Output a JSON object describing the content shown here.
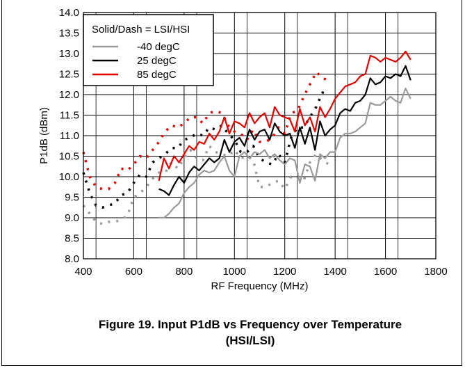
{
  "caption": {
    "line1": "Figure 19. Input P1dB vs Frequency over Temperature",
    "line2": "(HSI/LSI)"
  },
  "chart_data": {
    "type": "line",
    "title": "",
    "xlabel": "RF Frequency (MHz)",
    "ylabel": "P1dB (dBm)",
    "xlim": [
      400,
      1800
    ],
    "ylim": [
      8.0,
      14.0
    ],
    "xticks": [
      400,
      600,
      800,
      1000,
      1200,
      1400,
      1600,
      1800
    ],
    "yticks": [
      8.0,
      8.5,
      9.0,
      9.5,
      10.0,
      10.5,
      11.0,
      11.5,
      12.0,
      12.5,
      13.0,
      13.5,
      14.0
    ],
    "xtick_labels": [
      "400",
      "600",
      "800",
      "1000",
      "1200",
      "1400",
      "1600",
      "1800"
    ],
    "ytick_labels": [
      "8.0",
      "8.5",
      "9.0",
      "9.5",
      "10.0",
      "10.5",
      "11.0",
      "11.5",
      "12.0",
      "12.5",
      "13.0",
      "13.5",
      "14.0"
    ],
    "grid": true,
    "legend": {
      "title": "Solid/Dash = LSI/HSI",
      "placement": "top-left",
      "entries": [
        "-40 degC",
        "25 degC",
        "85 degC"
      ]
    },
    "colors": {
      "-40 degC": "#9a9a9a",
      "25 degC": "#000000",
      "85 degC": "#e00000"
    },
    "series": [
      {
        "name": "-40 degC",
        "style": "dash",
        "x": [
          400,
          425,
          450,
          475,
          500,
          525,
          550,
          575,
          600,
          625,
          650,
          675,
          700,
          725,
          750,
          775,
          800,
          825,
          850,
          875,
          900,
          925,
          950,
          975,
          1000,
          1025,
          1050,
          1075,
          1100,
          1125,
          1150,
          1175,
          1200,
          1225,
          1250,
          1275,
          1300,
          1325,
          1350,
          1375
        ],
        "y": [
          9.3,
          9.1,
          8.9,
          8.85,
          8.9,
          8.9,
          8.95,
          9.05,
          9.5,
          9.6,
          9.75,
          9.95,
          10.1,
          10.1,
          10.35,
          10.2,
          10.45,
          10.65,
          10.45,
          10.4,
          10.75,
          10.6,
          10.55,
          10.5,
          10.65,
          10.45,
          10.5,
          10.4,
          9.75,
          9.75,
          9.85,
          9.9,
          9.7,
          10.0,
          9.95,
          9.9,
          10.35,
          10.55,
          10.4,
          10.3
        ]
      },
      {
        "name": "25 degC",
        "style": "dash",
        "x": [
          400,
          425,
          450,
          475,
          500,
          525,
          550,
          575,
          600,
          625,
          650,
          675,
          700,
          725,
          750,
          775,
          800,
          825,
          850,
          875,
          900,
          925,
          950,
          975,
          1000,
          1025,
          1050,
          1075,
          1100,
          1125,
          1150,
          1175,
          1200,
          1225,
          1250,
          1275,
          1300,
          1325,
          1350,
          1375
        ],
        "y": [
          10.1,
          9.6,
          9.3,
          9.25,
          9.3,
          9.35,
          9.55,
          9.6,
          9.85,
          10.05,
          10.0,
          10.35,
          10.45,
          10.55,
          10.7,
          10.7,
          10.9,
          10.95,
          11.05,
          11.0,
          11.2,
          11.15,
          11.25,
          11.05,
          10.9,
          10.6,
          10.6,
          10.75,
          10.45,
          10.35,
          10.3,
          10.55,
          10.35,
          10.95,
          11.2,
          11.2,
          11.45,
          11.7,
          12.05,
          12.0
        ]
      },
      {
        "name": "85 degC",
        "style": "dash",
        "x": [
          400,
          425,
          450,
          475,
          500,
          525,
          550,
          575,
          600,
          625,
          650,
          675,
          700,
          725,
          750,
          775,
          800,
          825,
          850,
          875,
          900,
          925,
          950,
          975,
          1000,
          1025,
          1050,
          1075,
          1100,
          1125,
          1150,
          1175,
          1200,
          1225,
          1250,
          1275,
          1300,
          1325,
          1350,
          1375
        ],
        "y": [
          10.6,
          10.0,
          9.75,
          9.7,
          9.7,
          9.85,
          10.2,
          10.15,
          10.3,
          10.5,
          10.45,
          10.65,
          10.85,
          11.1,
          11.25,
          11.2,
          11.3,
          11.45,
          11.45,
          11.3,
          11.55,
          11.6,
          11.55,
          11.25,
          11.1,
          11.05,
          10.9,
          11.15,
          10.85,
          10.85,
          10.95,
          11.2,
          11.05,
          11.55,
          11.6,
          11.95,
          12.25,
          12.55,
          12.4,
          12.35
        ]
      },
      {
        "name": "-40 degC",
        "style": "solid",
        "x": [
          700,
          720,
          740,
          760,
          780,
          800,
          820,
          840,
          860,
          880,
          900,
          920,
          940,
          960,
          980,
          1000,
          1020,
          1040,
          1060,
          1080,
          1100,
          1120,
          1140,
          1160,
          1180,
          1200,
          1220,
          1240,
          1260,
          1280,
          1300,
          1320,
          1340,
          1360,
          1380,
          1400,
          1420,
          1440,
          1460,
          1480,
          1500,
          1520,
          1540,
          1560,
          1580,
          1600,
          1620,
          1640,
          1660,
          1680,
          1700
        ],
        "y": [
          9.0,
          9.0,
          9.1,
          9.25,
          9.35,
          9.6,
          9.75,
          9.85,
          10.05,
          10.15,
          10.1,
          10.15,
          10.35,
          10.5,
          10.15,
          10.0,
          10.5,
          10.6,
          10.45,
          10.6,
          10.55,
          10.65,
          10.45,
          10.55,
          10.4,
          10.3,
          10.45,
          10.4,
          9.85,
          10.3,
          10.25,
          9.9,
          10.55,
          10.45,
          10.6,
          10.6,
          10.95,
          11.05,
          11.05,
          11.1,
          11.2,
          11.3,
          11.8,
          11.75,
          11.75,
          11.85,
          11.95,
          11.85,
          11.8,
          12.15,
          11.9
        ]
      },
      {
        "name": "25 degC",
        "style": "solid",
        "x": [
          700,
          720,
          740,
          760,
          780,
          800,
          820,
          840,
          860,
          880,
          900,
          920,
          940,
          960,
          980,
          1000,
          1020,
          1040,
          1060,
          1080,
          1100,
          1120,
          1140,
          1160,
          1180,
          1200,
          1220,
          1240,
          1260,
          1280,
          1300,
          1320,
          1340,
          1360,
          1380,
          1400,
          1420,
          1440,
          1460,
          1480,
          1500,
          1520,
          1540,
          1560,
          1580,
          1600,
          1620,
          1640,
          1660,
          1680,
          1700
        ],
        "y": [
          9.7,
          9.65,
          9.55,
          9.8,
          10.0,
          9.85,
          10.1,
          10.25,
          10.15,
          10.3,
          10.45,
          10.35,
          10.45,
          10.9,
          10.6,
          10.85,
          10.95,
          10.75,
          11.15,
          10.9,
          11.1,
          11.15,
          10.9,
          11.3,
          11.1,
          11.0,
          11.05,
          10.7,
          11.2,
          10.8,
          11.2,
          10.65,
          11.35,
          11.0,
          11.15,
          11.25,
          11.55,
          11.65,
          11.6,
          11.8,
          11.85,
          12.0,
          12.4,
          12.25,
          12.3,
          12.45,
          12.4,
          12.5,
          12.45,
          12.7,
          12.35
        ]
      },
      {
        "name": "85 degC",
        "style": "solid",
        "x": [
          700,
          720,
          740,
          760,
          780,
          800,
          820,
          840,
          860,
          880,
          900,
          920,
          940,
          960,
          980,
          1000,
          1020,
          1040,
          1060,
          1080,
          1100,
          1120,
          1140,
          1160,
          1180,
          1200,
          1220,
          1240,
          1260,
          1280,
          1300,
          1320,
          1340,
          1360,
          1380,
          1400,
          1420,
          1440,
          1460,
          1480,
          1500,
          1520,
          1540,
          1560,
          1580,
          1600,
          1620,
          1640,
          1660,
          1680,
          1700
        ],
        "y": [
          9.9,
          10.45,
          10.2,
          10.5,
          10.35,
          10.55,
          10.75,
          10.65,
          10.85,
          10.8,
          11.05,
          10.9,
          11.1,
          11.45,
          11.05,
          11.35,
          11.3,
          11.2,
          11.55,
          11.3,
          11.45,
          11.55,
          11.2,
          11.7,
          11.5,
          11.45,
          11.4,
          11.1,
          11.65,
          11.25,
          11.45,
          11.1,
          11.7,
          11.45,
          11.65,
          11.9,
          12.05,
          12.2,
          12.25,
          12.3,
          12.45,
          12.5,
          12.95,
          12.9,
          12.8,
          12.9,
          12.85,
          12.8,
          12.9,
          13.05,
          12.85
        ]
      }
    ]
  }
}
